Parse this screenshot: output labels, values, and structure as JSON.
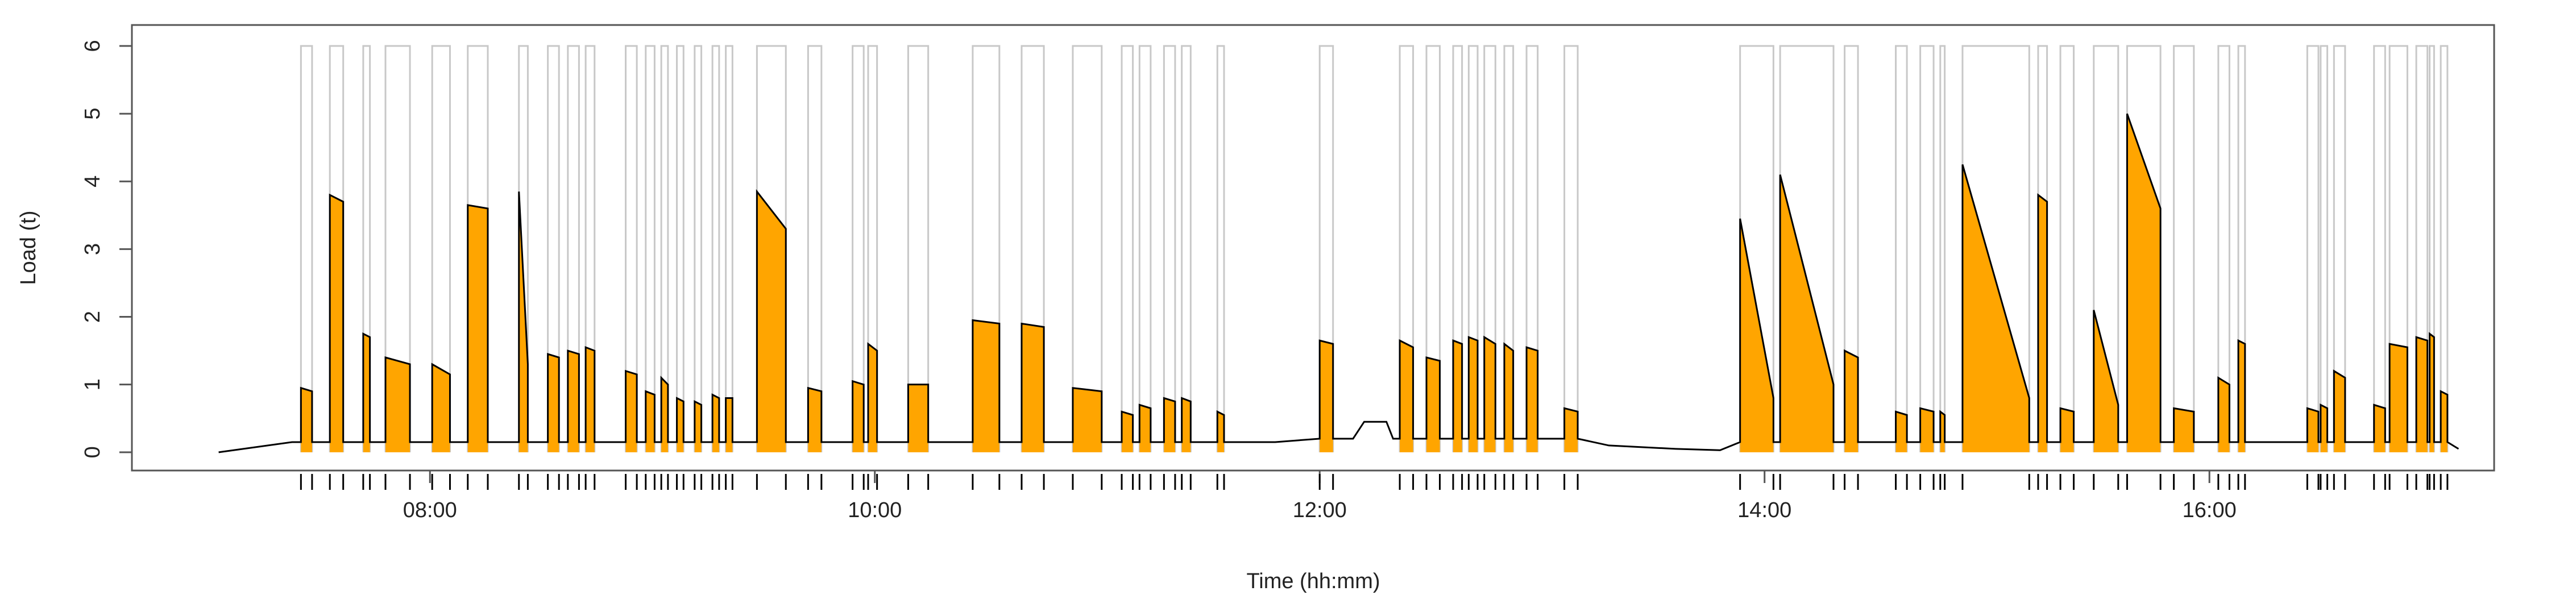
{
  "chart_data": {
    "type": "line",
    "xlabel": "Time (hh:mm)",
    "ylabel": "Load (t)",
    "xlim": [
      6.66,
      17.28
    ],
    "ylim": [
      -0.27,
      6.31
    ],
    "xticks": [
      {
        "value": 8,
        "label": "08:00"
      },
      {
        "value": 10,
        "label": "10:00"
      },
      {
        "value": 12,
        "label": "12:00"
      },
      {
        "value": 14,
        "label": "14:00"
      },
      {
        "value": 16,
        "label": "16:00"
      }
    ],
    "yticks": [
      0,
      1,
      2,
      3,
      4,
      5,
      6
    ],
    "line_color": "#000000",
    "fill_color": "#ffa500",
    "window_color": "#c8c8c8",
    "windows_level": 6,
    "x": [
      7.05,
      7.38,
      7.42,
      7.42,
      7.47,
      7.47,
      7.55,
      7.55,
      7.61,
      7.61,
      7.7,
      7.7,
      7.73,
      7.73,
      7.8,
      7.8,
      7.91,
      7.91,
      8.01,
      8.01,
      8.09,
      8.09,
      8.17,
      8.17,
      8.26,
      8.26,
      8.4,
      8.4,
      8.44,
      8.44,
      8.53,
      8.53,
      8.58,
      8.58,
      8.62,
      8.62,
      8.67,
      8.67,
      8.7,
      8.7,
      8.74,
      8.74,
      8.88,
      8.88,
      8.93,
      8.93,
      8.97,
      8.97,
      9.01,
      9.01,
      9.04,
      9.04,
      9.07,
      9.07,
      9.11,
      9.11,
      9.14,
      9.14,
      9.19,
      9.19,
      9.22,
      9.22,
      9.27,
      9.27,
      9.3,
      9.3,
      9.33,
      9.33,
      9.36,
      9.36,
      9.47,
      9.47,
      9.6,
      9.6,
      9.7,
      9.7,
      9.76,
      9.76,
      9.9,
      9.9,
      9.95,
      9.95,
      9.97,
      9.97,
      10.01,
      10.01,
      10.15,
      10.15,
      10.24,
      10.24,
      10.44,
      10.44,
      10.56,
      10.56,
      10.66,
      10.66,
      10.76,
      10.76,
      10.89,
      10.89,
      11.02,
      11.02,
      11.11,
      11.11,
      11.16,
      11.16,
      11.19,
      11.19,
      11.24,
      11.24,
      11.3,
      11.3,
      11.35,
      11.35,
      11.38,
      11.38,
      11.42,
      11.42,
      11.54,
      11.54,
      11.57,
      11.57,
      11.8,
      12.0,
      12.0,
      12.06,
      12.06,
      12.15,
      12.2,
      12.3,
      12.33,
      12.36,
      12.36,
      12.42,
      12.42,
      12.48,
      12.48,
      12.54,
      12.54,
      12.6,
      12.6,
      12.64,
      12.64,
      12.67,
      12.67,
      12.71,
      12.71,
      12.74,
      12.74,
      12.79,
      12.79,
      12.83,
      12.83,
      12.87,
      12.87,
      12.93,
      12.93,
      12.98,
      12.98,
      13.1,
      13.1,
      13.16,
      13.16,
      13.3,
      13.6,
      13.8,
      13.89,
      13.89,
      14.04,
      14.04,
      14.07,
      14.07,
      14.31,
      14.31,
      14.36,
      14.36,
      14.42,
      14.42,
      14.59,
      14.59,
      14.64,
      14.64,
      14.7,
      14.7,
      14.76,
      14.76,
      14.79,
      14.79,
      14.81,
      14.81,
      14.89,
      14.89,
      15.19,
      15.19,
      15.23,
      15.23,
      15.27,
      15.27,
      15.33,
      15.33,
      15.39,
      15.39,
      15.48,
      15.48,
      15.59,
      15.59,
      15.63,
      15.63,
      15.78,
      15.78,
      15.84,
      15.84,
      15.93,
      15.93,
      16.04,
      16.04,
      16.09,
      16.09,
      16.13,
      16.13,
      16.16,
      16.16,
      16.44,
      16.44,
      16.49,
      16.49,
      16.5,
      16.5,
      16.53,
      16.53,
      16.56,
      16.56,
      16.61,
      16.61,
      16.74,
      16.74,
      16.79,
      16.79,
      16.81,
      16.81,
      16.89,
      16.89,
      16.93,
      16.93,
      16.98,
      16.98,
      16.99,
      16.99,
      17.01,
      17.01,
      17.04,
      17.04,
      17.07,
      17.07,
      17.12
    ],
    "values": [
      0,
      0.15,
      0.15,
      0.95,
      0.9,
      0.15,
      0.15,
      3.8,
      3.7,
      0.15,
      0.15,
      1.75,
      1.7,
      0.15,
      0.15,
      1.4,
      1.3,
      0.15,
      0.15,
      1.3,
      1.15,
      0.15,
      0.15,
      3.65,
      3.6,
      0.15,
      0.15,
      3.85,
      1.3,
      0.15,
      0.15,
      1.45,
      1.4,
      0.15,
      0.15,
      1.5,
      1.45,
      0.15,
      0.15,
      1.55,
      1.5,
      0.15,
      0.15,
      1.2,
      1.15,
      0.15,
      0.15,
      0.9,
      0.85,
      0.15,
      0.15,
      1.1,
      1.0,
      0.15,
      0.15,
      0.8,
      0.75,
      0.15,
      0.15,
      0.75,
      0.7,
      0.15,
      0.15,
      0.85,
      0.8,
      0.15,
      0.15,
      0.8,
      0.8,
      0.15,
      0.15,
      3.85,
      3.3,
      0.15,
      0.15,
      0.95,
      0.9,
      0.15,
      0.15,
      1.05,
      1.0,
      0.15,
      0.15,
      1.6,
      1.5,
      0.15,
      0.15,
      1.0,
      1.0,
      0.15,
      0.15,
      1.95,
      1.9,
      0.15,
      0.15,
      1.9,
      1.85,
      0.15,
      0.15,
      0.95,
      0.9,
      0.15,
      0.15,
      0.6,
      0.55,
      0.15,
      0.15,
      0.7,
      0.65,
      0.15,
      0.15,
      0.8,
      0.75,
      0.15,
      0.15,
      0.8,
      0.75,
      0.15,
      0.15,
      0.6,
      0.55,
      0.15,
      0.15,
      0.2,
      1.65,
      1.6,
      0.2,
      0.2,
      0.45,
      0.45,
      0.2,
      0.2,
      1.65,
      1.55,
      0.2,
      0.2,
      1.4,
      1.35,
      0.2,
      0.2,
      1.65,
      1.6,
      0.2,
      0.2,
      1.7,
      1.65,
      0.2,
      0.2,
      1.7,
      1.6,
      0.2,
      0.2,
      1.6,
      1.5,
      0.2,
      0.2,
      1.55,
      1.5,
      0.2,
      0.2,
      0.65,
      0.6,
      0.2,
      0.1,
      0.05,
      0.03,
      0.15,
      3.45,
      0.8,
      0.15,
      0.15,
      4.1,
      1.0,
      0.15,
      0.15,
      1.5,
      1.4,
      0.15,
      0.15,
      0.6,
      0.55,
      0.15,
      0.15,
      0.65,
      0.6,
      0.15,
      0.15,
      0.6,
      0.55,
      0.15,
      0.15,
      4.25,
      0.8,
      0.15,
      0.15,
      3.8,
      3.7,
      0.15,
      0.15,
      0.65,
      0.6,
      0.15,
      0.15,
      2.1,
      0.7,
      0.15,
      0.15,
      5.0,
      3.6,
      0.15,
      0.15,
      0.65,
      0.6,
      0.15,
      0.15,
      1.1,
      1.0,
      0.15,
      0.15,
      1.65,
      1.6,
      0.15,
      0.15,
      0.65,
      0.6,
      0.15,
      0.15,
      0.7,
      0.65,
      0.15,
      0.15,
      1.2,
      1.1,
      0.15,
      0.15,
      0.7,
      0.65,
      0.15,
      0.15,
      1.6,
      1.55,
      0.15,
      0.15,
      1.7,
      1.65,
      0.15,
      0.15,
      1.75,
      1.7,
      0.15,
      0.15,
      0.9,
      0.85,
      0.15,
      0.05
    ],
    "windows": [
      [
        7.42,
        7.47
      ],
      [
        7.55,
        7.61
      ],
      [
        7.7,
        7.73
      ],
      [
        7.8,
        7.91
      ],
      [
        8.01,
        8.09
      ],
      [
        8.17,
        8.26
      ],
      [
        8.4,
        8.44
      ],
      [
        8.53,
        8.58
      ],
      [
        8.62,
        8.67
      ],
      [
        8.7,
        8.74
      ],
      [
        8.88,
        8.93
      ],
      [
        8.97,
        9.01
      ],
      [
        9.04,
        9.07
      ],
      [
        9.11,
        9.14
      ],
      [
        9.19,
        9.22
      ],
      [
        9.27,
        9.3
      ],
      [
        9.33,
        9.36
      ],
      [
        9.47,
        9.6
      ],
      [
        9.7,
        9.76
      ],
      [
        9.9,
        9.95
      ],
      [
        9.97,
        10.01
      ],
      [
        10.15,
        10.24
      ],
      [
        10.44,
        10.56
      ],
      [
        10.66,
        10.76
      ],
      [
        10.89,
        11.02
      ],
      [
        11.11,
        11.16
      ],
      [
        11.19,
        11.24
      ],
      [
        11.3,
        11.35
      ],
      [
        11.38,
        11.42
      ],
      [
        11.54,
        11.57
      ],
      [
        12.0,
        12.06
      ],
      [
        12.36,
        12.42
      ],
      [
        12.48,
        12.54
      ],
      [
        12.6,
        12.64
      ],
      [
        12.67,
        12.71
      ],
      [
        12.74,
        12.79
      ],
      [
        12.83,
        12.87
      ],
      [
        12.93,
        12.98
      ],
      [
        13.1,
        13.16
      ],
      [
        13.89,
        14.04
      ],
      [
        14.07,
        14.31
      ],
      [
        14.36,
        14.42
      ],
      [
        14.59,
        14.64
      ],
      [
        14.7,
        14.76
      ],
      [
        14.79,
        14.81
      ],
      [
        14.89,
        15.19
      ],
      [
        15.23,
        15.27
      ],
      [
        15.33,
        15.39
      ],
      [
        15.48,
        15.59
      ],
      [
        15.63,
        15.78
      ],
      [
        15.84,
        15.93
      ],
      [
        16.04,
        16.09
      ],
      [
        16.13,
        16.16
      ],
      [
        16.44,
        16.49
      ],
      [
        16.5,
        16.53
      ],
      [
        16.56,
        16.61
      ],
      [
        16.74,
        16.79
      ],
      [
        16.81,
        16.89
      ],
      [
        16.93,
        16.98
      ],
      [
        16.99,
        17.01
      ],
      [
        17.04,
        17.07
      ]
    ]
  }
}
